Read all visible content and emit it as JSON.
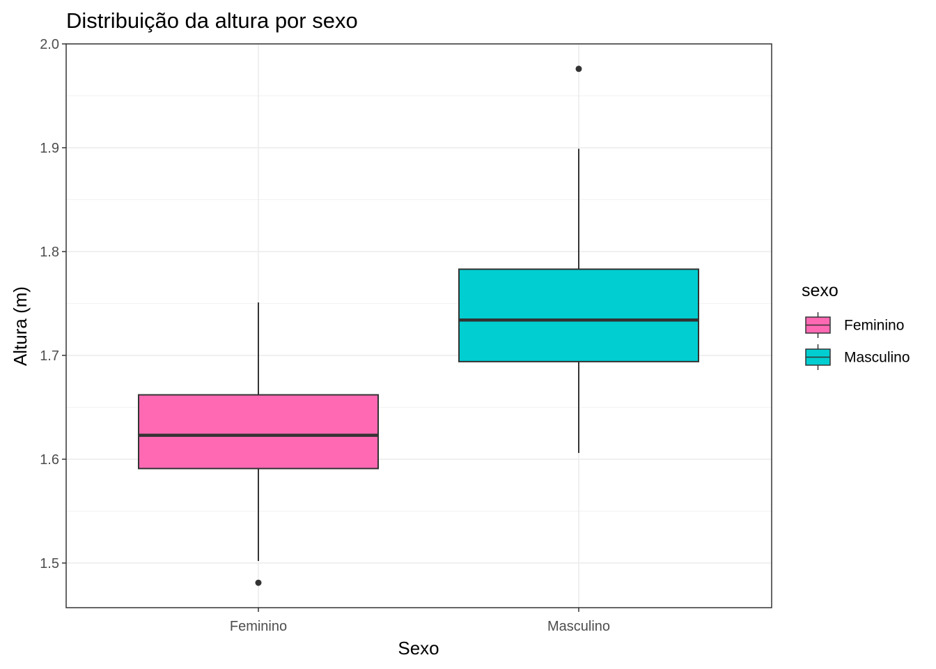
{
  "chart_data": {
    "type": "boxplot",
    "title": "Distribuição da altura por sexo",
    "xlabel": "Sexo",
    "ylabel": "Altura (m)",
    "ylim": [
      1.457,
      2.0
    ],
    "yticks": [
      1.5,
      1.6,
      1.7,
      1.8,
      1.9,
      2.0
    ],
    "ytick_labels": [
      "1.5",
      "1.6",
      "1.7",
      "1.8",
      "1.9",
      "2.0"
    ],
    "categories": [
      "Feminino",
      "Masculino"
    ],
    "boxes": [
      {
        "category": "Feminino",
        "whisker_low": 1.502,
        "q1": 1.591,
        "median": 1.623,
        "q3": 1.662,
        "whisker_high": 1.751,
        "outliers": [
          1.481
        ],
        "color": "#FF69B4"
      },
      {
        "category": "Masculino",
        "whisker_low": 1.606,
        "q1": 1.694,
        "median": 1.734,
        "q3": 1.783,
        "whisker_high": 1.899,
        "outliers": [
          1.976
        ],
        "color": "#00CED1"
      }
    ],
    "grid": true,
    "legend": {
      "title": "sexo",
      "position": "right",
      "entries": [
        "Feminino",
        "Masculino"
      ]
    }
  }
}
